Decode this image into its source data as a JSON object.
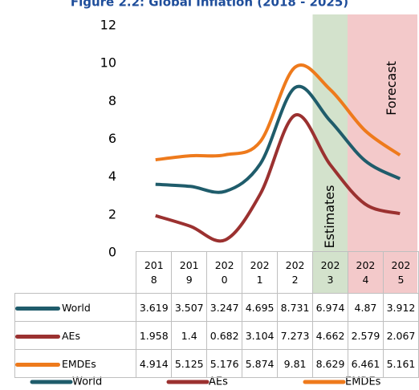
{
  "chart_data": {
    "type": "line",
    "title": "Figure 2.2: Global Inflation (2018 - 2025)",
    "categories": [
      "2018",
      "2019",
      "2020",
      "2021",
      "2022",
      "2023",
      "2024",
      "2025"
    ],
    "series": [
      {
        "name": "World",
        "color": "#1f5c6b",
        "values": [
          3.619,
          3.507,
          3.247,
          4.695,
          8.731,
          6.974,
          4.87,
          3.912
        ]
      },
      {
        "name": "AEs",
        "color": "#9b3130",
        "values": [
          1.958,
          1.4,
          0.682,
          3.104,
          7.273,
          4.662,
          2.579,
          2.067
        ]
      },
      {
        "name": "EMDEs",
        "color": "#ee7a1c",
        "values": [
          4.914,
          5.125,
          5.176,
          5.874,
          9.81,
          8.629,
          6.461,
          5.161
        ]
      }
    ],
    "ylim": [
      0,
      12
    ],
    "yticks": [
      0,
      2,
      4,
      6,
      8,
      10,
      12
    ],
    "shaded_regions": [
      {
        "label": "Estimates",
        "from": "2023",
        "to": "2023",
        "color": "#d3e2cc"
      },
      {
        "label": "Forecast",
        "from": "2024",
        "to": "2025",
        "color": "#f3c9ca"
      }
    ]
  }
}
